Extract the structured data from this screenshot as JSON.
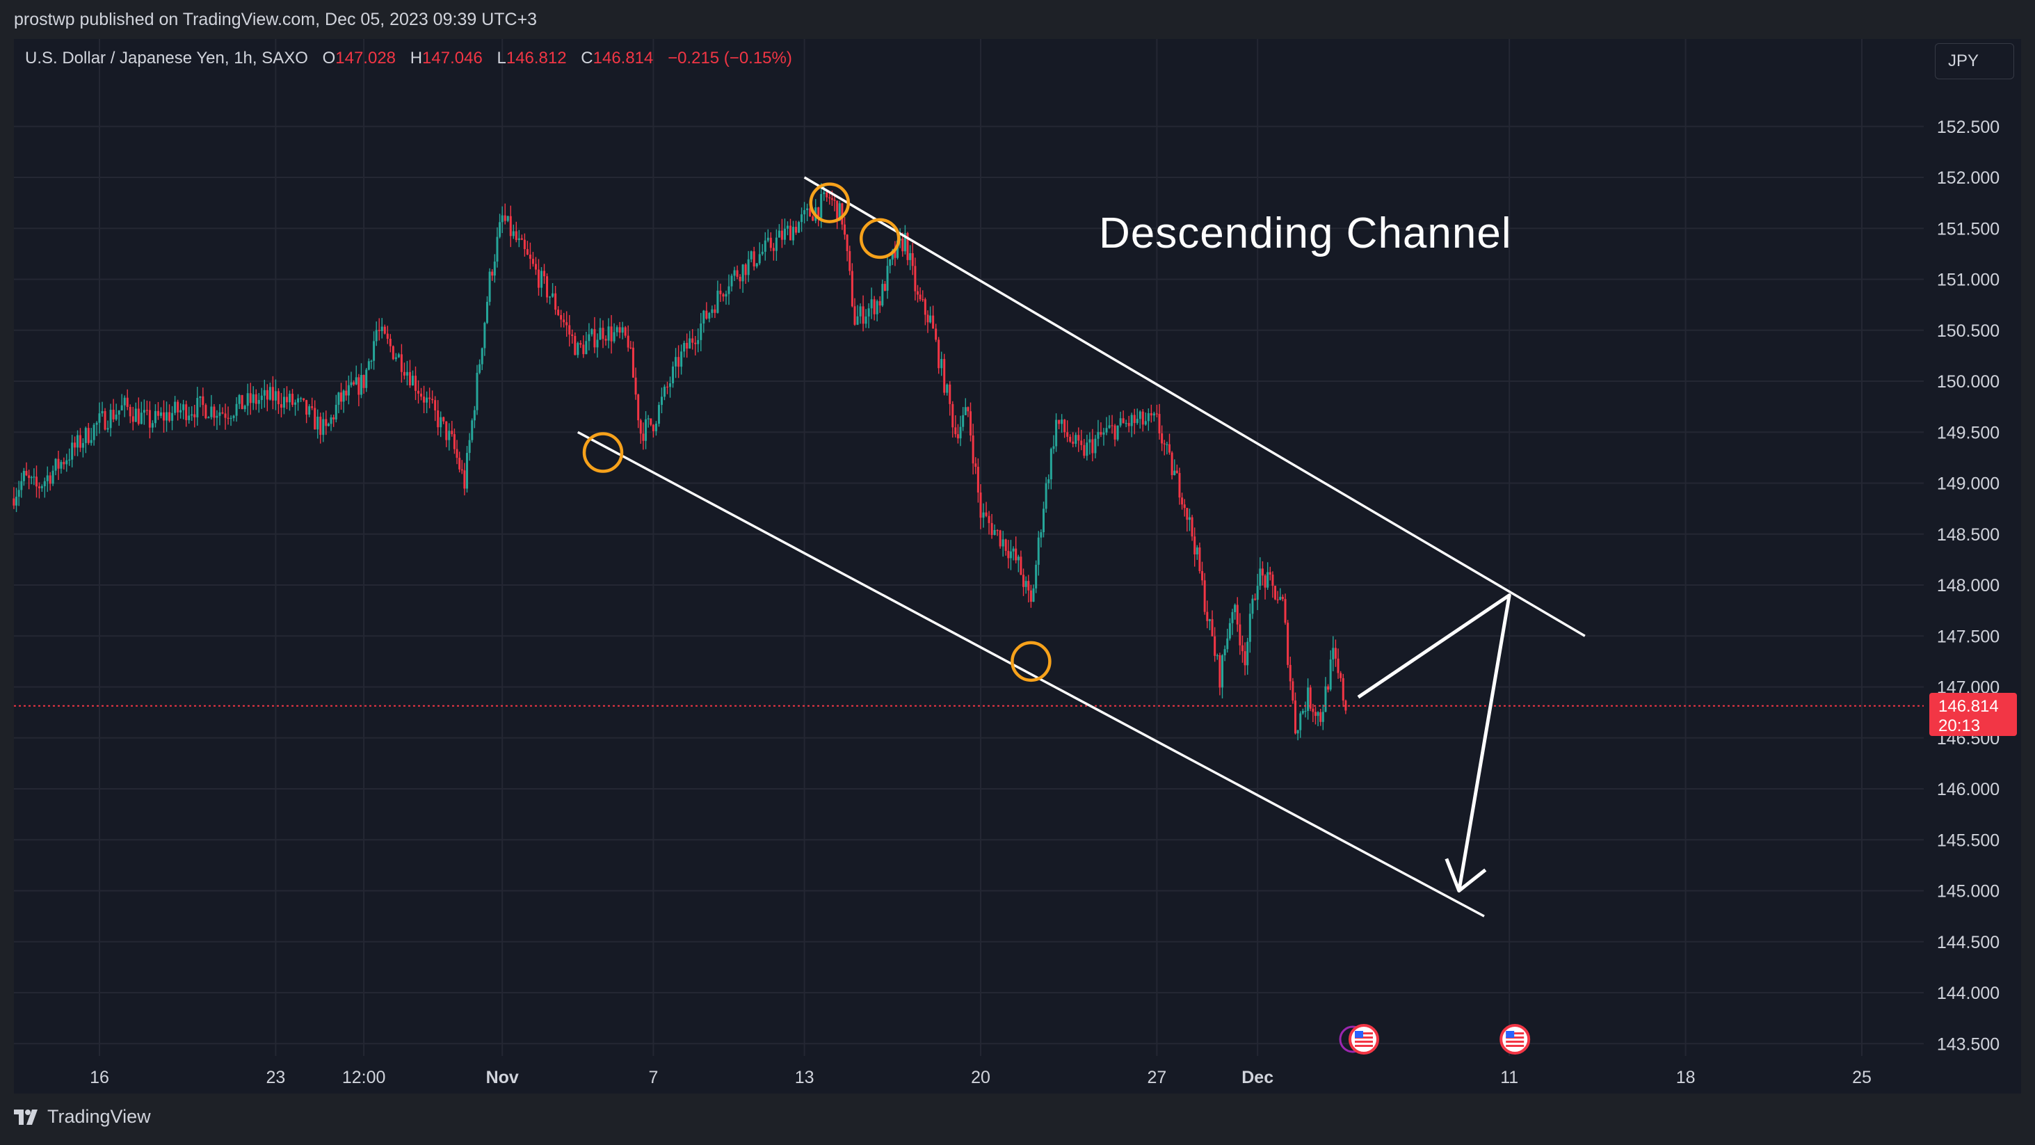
{
  "header": {
    "attribution": "prostwp published on TradingView.com, Dec 05, 2023 09:39 UTC+3"
  },
  "legend": {
    "symbol": "U.S. Dollar / Japanese Yen, 1h, SAXO",
    "o_label": "O",
    "o_value": "147.028",
    "h_label": "H",
    "h_value": "147.046",
    "l_label": "L",
    "l_value": "146.812",
    "c_label": "C",
    "c_value": "146.814",
    "change": "−0.215 (−0.15%)"
  },
  "currency_button": "JPY",
  "last_price": {
    "value": "146.814",
    "countdown": "20:13"
  },
  "footer": {
    "brand": "TradingView"
  },
  "colors": {
    "up": "#26a69a",
    "down": "#f23645",
    "background": "#161a25",
    "grid": "#242733",
    "text": "#d1d4dc",
    "annotation": "#ffffff",
    "marker": "#f7a21b"
  },
  "annotations": {
    "pattern_label": "Descending Channel",
    "touch_markers": 4,
    "projection": "rise to upper channel line, then drop to lower channel line"
  },
  "chart_data": {
    "type": "candlestick",
    "title": "U.S. Dollar / Japanese Yen, 1h, SAXO",
    "xlabel": "",
    "ylabel": "",
    "ylim": [
      143.3,
      153.0
    ],
    "y_ticks": [
      "152.500",
      "152.000",
      "151.500",
      "151.000",
      "150.500",
      "150.000",
      "149.500",
      "149.000",
      "148.500",
      "148.000",
      "147.500",
      "147.000",
      "146.500",
      "146.000",
      "145.500",
      "145.000",
      "144.500",
      "144.000",
      "143.500"
    ],
    "x_ticks": [
      {
        "label": "16",
        "date": "2023-10-16"
      },
      {
        "label": "23",
        "date": "2023-10-23"
      },
      {
        "label": "12:00",
        "date": "2023-10-26T12:00"
      },
      {
        "label": "Nov",
        "date": "2023-11-01"
      },
      {
        "label": "7",
        "date": "2023-11-07"
      },
      {
        "label": "13",
        "date": "2023-11-13"
      },
      {
        "label": "20",
        "date": "2023-11-20"
      },
      {
        "label": "27",
        "date": "2023-11-27"
      },
      {
        "label": "Dec",
        "date": "2023-12-01"
      },
      {
        "label": "11",
        "date": "2023-12-11"
      },
      {
        "label": "18",
        "date": "2023-12-18"
      },
      {
        "label": "25",
        "date": "2023-12-25"
      }
    ],
    "price_path": [
      [
        "2023-10-12T12:00",
        148.85
      ],
      [
        "2023-10-13",
        149.05
      ],
      [
        "2023-10-13T12:00",
        148.95
      ],
      [
        "2023-10-16",
        149.6
      ],
      [
        "2023-10-17",
        149.75
      ],
      [
        "2023-10-18",
        149.6
      ],
      [
        "2023-10-19",
        149.7
      ],
      [
        "2023-10-20",
        149.75
      ],
      [
        "2023-10-21",
        149.7
      ],
      [
        "2023-10-22",
        149.8
      ],
      [
        "2023-10-23",
        149.85
      ],
      [
        "2023-10-24",
        149.75
      ],
      [
        "2023-10-25",
        149.5
      ],
      [
        "2023-10-25T12:00",
        149.8
      ],
      [
        "2023-10-26",
        149.9
      ],
      [
        "2023-10-26T12:00",
        150.0
      ],
      [
        "2023-10-27",
        150.5
      ],
      [
        "2023-10-28",
        150.2
      ],
      [
        "2023-10-29",
        149.8
      ],
      [
        "2023-10-30",
        149.4
      ],
      [
        "2023-10-30T12:00",
        149.0
      ],
      [
        "2023-10-31",
        150.0
      ],
      [
        "2023-10-31T12:00",
        151.0
      ],
      [
        "2023-11-01",
        151.6
      ],
      [
        "2023-11-02",
        151.2
      ],
      [
        "2023-11-03",
        150.8
      ],
      [
        "2023-11-04",
        150.3
      ],
      [
        "2023-11-05",
        150.5
      ],
      [
        "2023-11-06",
        150.4
      ],
      [
        "2023-11-06T12:00",
        149.5
      ],
      [
        "2023-11-07",
        149.6
      ],
      [
        "2023-11-08",
        150.2
      ],
      [
        "2023-11-09",
        150.6
      ],
      [
        "2023-11-10",
        151.0
      ],
      [
        "2023-11-11",
        151.2
      ],
      [
        "2023-11-12",
        151.4
      ],
      [
        "2023-11-13",
        151.6
      ],
      [
        "2023-11-14",
        151.8
      ],
      [
        "2023-11-14T12:00",
        151.6
      ],
      [
        "2023-11-15",
        150.6
      ],
      [
        "2023-11-16",
        150.8
      ],
      [
        "2023-11-16T12:00",
        151.2
      ],
      [
        "2023-11-17",
        151.4
      ],
      [
        "2023-11-17T12:00",
        150.8
      ],
      [
        "2023-11-18",
        150.6
      ],
      [
        "2023-11-19",
        149.5
      ],
      [
        "2023-11-19T12:00",
        149.7
      ],
      [
        "2023-11-20",
        148.7
      ],
      [
        "2023-11-21",
        148.4
      ],
      [
        "2023-11-21T12:00",
        148.2
      ],
      [
        "2023-11-22",
        147.8
      ],
      [
        "2023-11-22T12:00",
        148.8
      ],
      [
        "2023-11-23",
        149.6
      ],
      [
        "2023-11-24",
        149.3
      ],
      [
        "2023-11-25",
        149.5
      ],
      [
        "2023-11-26",
        149.6
      ],
      [
        "2023-11-27",
        149.6
      ],
      [
        "2023-11-27T12:00",
        149.2
      ],
      [
        "2023-11-28",
        148.9
      ],
      [
        "2023-11-28T12:00",
        148.4
      ],
      [
        "2023-11-29",
        147.7
      ],
      [
        "2023-11-29T12:00",
        147.1
      ],
      [
        "2023-11-30",
        147.8
      ],
      [
        "2023-11-30T12:00",
        147.3
      ],
      [
        "2023-12-01",
        148.1
      ],
      [
        "2023-12-01T12:00",
        148.0
      ],
      [
        "2023-12-02",
        147.8
      ],
      [
        "2023-12-02T12:00",
        146.6
      ],
      [
        "2023-12-03",
        146.9
      ],
      [
        "2023-12-03T12:00",
        146.7
      ],
      [
        "2023-12-04",
        147.3
      ],
      [
        "2023-12-04T12:00",
        146.814
      ]
    ],
    "trendlines": [
      {
        "name": "upper channel line",
        "from": [
          "2023-11-13",
          152.0
        ],
        "to": [
          "2023-12-14",
          147.5
        ]
      },
      {
        "name": "lower channel line",
        "from": [
          "2023-11-04",
          149.5
        ],
        "to": [
          "2023-12-10",
          144.75
        ]
      }
    ],
    "touch_points": [
      [
        "2023-11-14",
        151.75
      ],
      [
        "2023-11-16",
        151.4
      ],
      [
        "2023-11-05",
        149.3
      ],
      [
        "2023-11-22",
        147.25
      ]
    ],
    "projection_arrow": [
      [
        "2023-12-05",
        146.9
      ],
      [
        "2023-12-11",
        147.9
      ],
      [
        "2023-12-09",
        145.0
      ]
    ],
    "last_price_line": 146.814,
    "event_markers": [
      {
        "date": "2023-12-05",
        "kind": "US economic event"
      },
      {
        "date": "2023-12-11",
        "kind": "US economic event"
      }
    ],
    "grid": true
  }
}
